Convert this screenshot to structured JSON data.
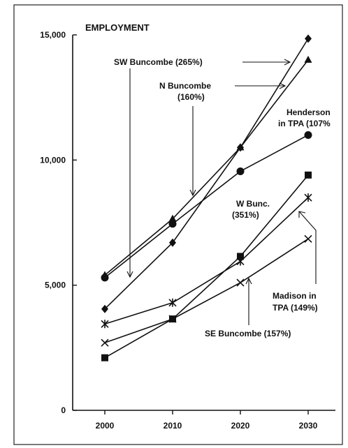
{
  "chart_data": {
    "type": "line",
    "title": "EMPLOYMENT",
    "xlabel": "",
    "ylabel": "",
    "x": [
      2000,
      2010,
      2020,
      2030
    ],
    "xticks": [
      "2000",
      "2010",
      "2020",
      "2030"
    ],
    "ylim": [
      0,
      15000
    ],
    "yticks": [
      "0",
      "5,000",
      "10,000",
      "15,000"
    ],
    "grid": false,
    "legend": "none (series labeled by annotations with arrows)",
    "series": [
      {
        "label": "SW Buncombe (265%)",
        "marker": "diamond",
        "values": [
          4050,
          6700,
          10500,
          14850
        ]
      },
      {
        "label": "N Buncombe (160%)",
        "marker": "triangle",
        "values": [
          5400,
          7650,
          10500,
          14000
        ]
      },
      {
        "label": "Henderson in TPA (107%)",
        "marker": "circle",
        "values": [
          5300,
          7450,
          9550,
          11000
        ]
      },
      {
        "label": "W Bunc. (351%)",
        "marker": "square",
        "values": [
          2100,
          3650,
          6150,
          9400
        ]
      },
      {
        "label": "Madison in TPA (149%)",
        "marker": "star",
        "values": [
          3450,
          4300,
          5950,
          8500
        ]
      },
      {
        "label": "SE Buncombe (157%)",
        "marker": "x",
        "values": [
          2700,
          3650,
          5100,
          6850
        ]
      }
    ],
    "annotations": {
      "sw": "SW Buncombe (265%)",
      "n1": "N Buncombe",
      "n2": "(160%)",
      "h1": "Henderson",
      "h2": "in TPA (107%",
      "w1": "W Bunc.",
      "w2": "(351%)",
      "m1": "Madison in",
      "m2": "TPA (149%)",
      "se": "SE Buncombe (157%)"
    }
  }
}
